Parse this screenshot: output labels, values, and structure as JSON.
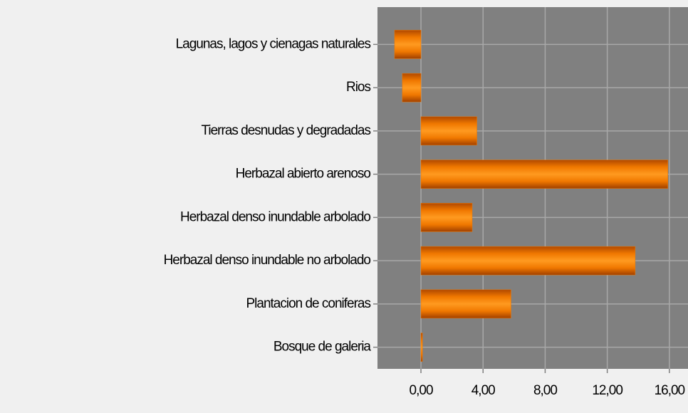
{
  "chart_data": {
    "type": "barh",
    "categories": [
      "Lagunas, lagos y cienagas naturales",
      "Rios",
      "Tierras desnudas y degradadas",
      "Herbazal abierto arenoso",
      "Herbazal denso inundable arbolado",
      "Herbazal denso inundable no arbolado",
      "Plantacion de coniferas",
      "Bosque de galeria"
    ],
    "values": [
      -1.7,
      -1.2,
      3.6,
      15.9,
      3.3,
      13.8,
      5.8,
      0.1
    ],
    "color": "#f07800",
    "xlim": [
      -2.8,
      17.2
    ],
    "xticks": [
      {
        "value": 0,
        "label": "0,00"
      },
      {
        "value": 4,
        "label": "4,00"
      },
      {
        "value": 8,
        "label": "8,00"
      },
      {
        "value": 12,
        "label": "12,00"
      },
      {
        "value": 16,
        "label": "16,00"
      }
    ],
    "grid": true
  }
}
